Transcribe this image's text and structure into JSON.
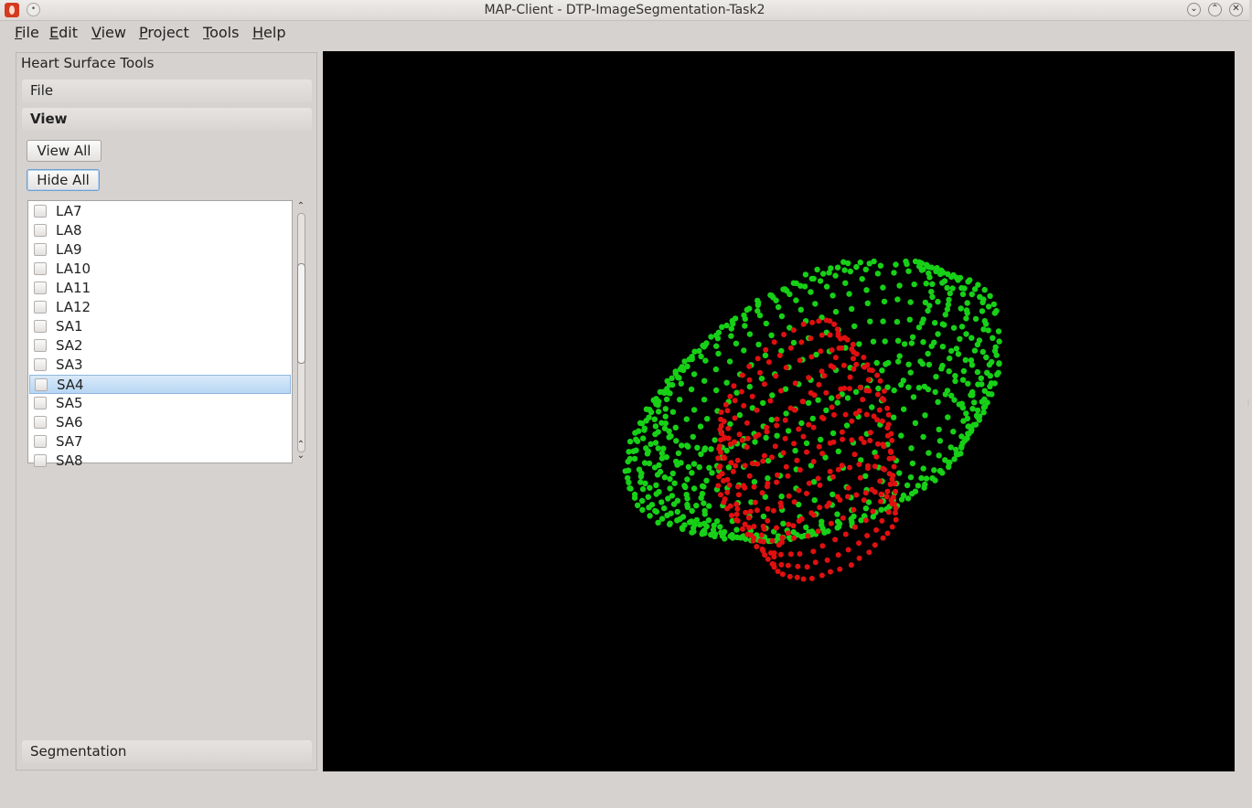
{
  "window": {
    "title": "MAP-Client - DTP-ImageSegmentation-Task2"
  },
  "menu": [
    {
      "label": "File",
      "mnemonic": "F",
      "rest": "ile"
    },
    {
      "label": "Edit",
      "mnemonic": "E",
      "rest": "dit"
    },
    {
      "label": "View",
      "mnemonic": "V",
      "rest": "iew"
    },
    {
      "label": "Project",
      "mnemonic": "P",
      "rest": "roject"
    },
    {
      "label": "Tools",
      "mnemonic": "T",
      "rest": "ools"
    },
    {
      "label": "Help",
      "mnemonic": "H",
      "rest": "elp"
    }
  ],
  "dock": {
    "title": "Heart Surface Tools",
    "sections": {
      "file": "File",
      "view": "View",
      "segmentation": "Segmentation"
    },
    "buttons": {
      "view_all": "View All",
      "hide_all": "Hide All"
    },
    "list": {
      "items": [
        "LA7",
        "LA8",
        "LA9",
        "LA10",
        "LA11",
        "LA12",
        "SA1",
        "SA2",
        "SA3",
        "SA4",
        "SA5",
        "SA6",
        "SA7",
        "SA8"
      ],
      "checked": [
        false,
        false,
        false,
        false,
        false,
        false,
        false,
        false,
        false,
        false,
        false,
        false,
        false,
        false
      ],
      "selected": "SA4"
    }
  },
  "viewer": {
    "background": "#000000",
    "point_colors": {
      "outer_surface": "#17d017",
      "inner_surface": "#e01010"
    }
  }
}
